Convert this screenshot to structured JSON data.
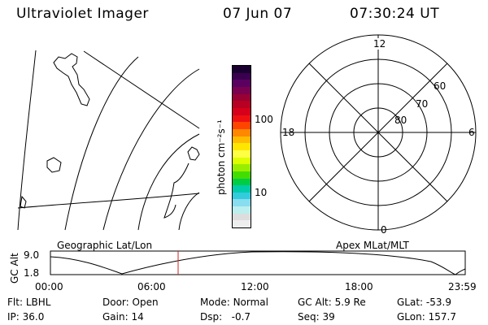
{
  "header": {
    "instrument": "Ultraviolet Imager",
    "date": "07 Jun 07",
    "time": "07:30:24 UT"
  },
  "colorbar": {
    "label": "photon cm⁻²s⁻¹",
    "ticks": [
      "100",
      "10"
    ],
    "colors": [
      "#1a0030",
      "#3a0050",
      "#5a0060",
      "#7a0050",
      "#990033",
      "#b80022",
      "#d6001a",
      "#ee1111",
      "#ff4400",
      "#ff8800",
      "#ffbb00",
      "#ffe600",
      "#ffff44",
      "#ddff00",
      "#99ee00",
      "#44dd00",
      "#00cc44",
      "#00ccaa",
      "#33ccdd",
      "#88ddee",
      "#bbeeee",
      "#dddddd",
      "#eeeeee"
    ]
  },
  "maps": {
    "left_label": "Geographic Lat/Lon",
    "right_label": "Apex MLat/MLT",
    "polar": {
      "mlt_labels": [
        "12",
        "18",
        "6",
        "0"
      ],
      "lat_labels": [
        "60",
        "70",
        "80"
      ]
    }
  },
  "altitude_plot": {
    "ylabel": "GC Alt",
    "yticks": [
      "9.0",
      "1.8"
    ],
    "xticks": [
      "00:00",
      "06:00",
      "12:00",
      "18:00",
      "23:59"
    ],
    "marker_color": "#cc2222"
  },
  "info": {
    "row1": [
      {
        "label": "Flt:",
        "value": "LBHL"
      },
      {
        "label": "Door:",
        "value": "Open"
      },
      {
        "label": "Mode:",
        "value": "Normal"
      },
      {
        "label": "GC Alt:",
        "value": "5.9 Re"
      },
      {
        "label": "GLat:",
        "value": "-53.9"
      }
    ],
    "row2": [
      {
        "label": "IP:",
        "value": "36.0"
      },
      {
        "label": "Gain:",
        "value": "14"
      },
      {
        "label": "Dsp:",
        "value": "-0.7"
      },
      {
        "label": "Seq:",
        "value": "39"
      },
      {
        "label": "GLon:",
        "value": "157.7"
      }
    ]
  }
}
